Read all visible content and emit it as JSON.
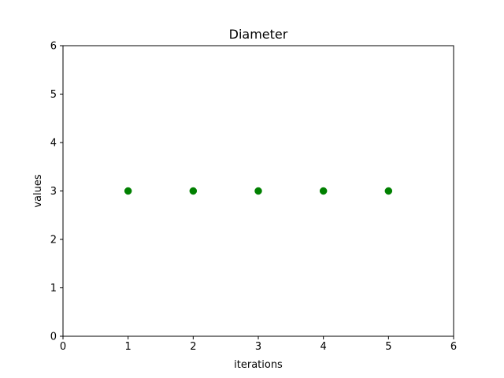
{
  "chart_data": {
    "type": "scatter",
    "title": "Diameter",
    "xlabel": "iterations",
    "ylabel": "values",
    "xlim": [
      0,
      6
    ],
    "ylim": [
      0,
      6
    ],
    "xticks": [
      0,
      1,
      2,
      3,
      4,
      5,
      6
    ],
    "yticks": [
      0,
      1,
      2,
      3,
      4,
      5,
      6
    ],
    "grid": false,
    "series": [
      {
        "x": [
          1,
          2,
          3,
          4,
          5
        ],
        "y": [
          3,
          3,
          3,
          3,
          3
        ],
        "color": "#008000"
      }
    ]
  }
}
